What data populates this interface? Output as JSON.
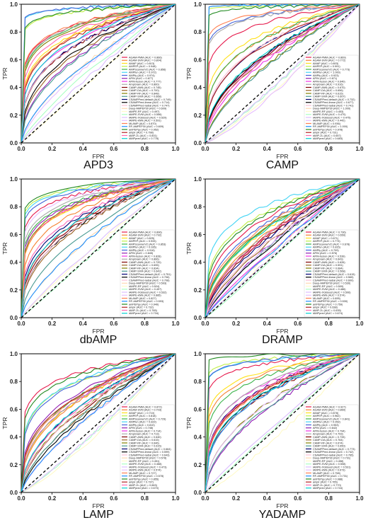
{
  "figure": {
    "colors": [
      "#e6194b",
      "#f58231",
      "#ffe119",
      "#bfef45",
      "#3cb44b",
      "#42d4f4",
      "#4363d8",
      "#911eb4",
      "#f032e6",
      "#a9a9a9",
      "#800000",
      "#9a6324",
      "#808000",
      "#469990",
      "#000075",
      "#000000",
      "#fabed4",
      "#ffd8b1",
      "#fffac8",
      "#aaffc3",
      "#dcbeff",
      "#e6beff",
      "#ff7f50",
      "#1e90ff",
      "#228b22",
      "#b22222",
      "#ff69b4",
      "#00ced1",
      "#7fff00",
      "#daa520"
    ]
  },
  "chart_data": [
    {
      "type": "line",
      "title": "APD3",
      "xlabel": "FPR",
      "ylabel": "TPR",
      "xlim": [
        0,
        1.0
      ],
      "ylim": [
        0,
        1.0
      ],
      "xticks": [
        "0.0",
        "0.2",
        "0.4",
        "0.6",
        "0.8",
        "1.0"
      ],
      "yticks": [
        "0.0",
        "0.2",
        "0.4",
        "0.6",
        "0.8",
        "1.0"
      ],
      "legend_position": "lower-right",
      "series": [
        {
          "name": "AGAM-PMM (AUC = 0.866)",
          "auc": 0.866
        },
        {
          "name": "AGAM-SVM (AUC = 0.804)",
          "auc": 0.804
        },
        {
          "name": "AMAP (AUC = 0.813)",
          "auc": 0.813
        },
        {
          "name": "AMPEP (AUC = 0.948)",
          "auc": 0.948
        },
        {
          "name": "AMPScannerV2 (AUC = 0.856)",
          "auc": 0.856
        },
        {
          "name": "AMPfun (AUC = 0.972)",
          "auc": 0.972
        },
        {
          "name": "AMPfy (AUC = 0.974)",
          "auc": 0.974
        },
        {
          "name": "APIN (AUC = 0.677)",
          "auc": 0.677
        },
        {
          "name": "APIN-fusion (AUC = 0.777)",
          "auc": 0.777
        },
        {
          "name": "AmpGram (AUC = 0.860)",
          "auc": 0.86
        },
        {
          "name": "CAMP-ANN (AUC = 0.745)",
          "auc": 0.745
        },
        {
          "name": "CAMP-DA (AUC = 0.700)",
          "auc": 0.7
        },
        {
          "name": "CAMP-RF (AUC = 0.848)",
          "auc": 0.848
        },
        {
          "name": "CAMP-SVM (AUC = 0.668)",
          "auc": 0.668
        },
        {
          "name": "CSAMPPred-default (AUC = 0.749)",
          "auc": 0.749
        },
        {
          "name": "CSAMPPred-linear (AUC = 0.714)",
          "auc": 0.714
        },
        {
          "name": "CSAMPPred-radial (AUC = 0.747)",
          "auc": 0.747
        },
        {
          "name": "Deep-AMPEP30 (AUC = 0.609)",
          "auc": 0.609
        },
        {
          "name": "iAMPE-RF (AUC = 0.497)",
          "auc": 0.497
        },
        {
          "name": "iAMPE-SVM (AUC = 0.556)",
          "auc": 0.556
        },
        {
          "name": "iAMPE-XGBoost (AUC = 0.529)",
          "auc": 0.529
        },
        {
          "name": "iAMPE-kNN (AUC = 0.591)",
          "auc": 0.591
        },
        {
          "name": "MLAMP (AUC = 0.870)",
          "auc": 0.87
        },
        {
          "name": "RF-AMPEP30 (AUC = 0.609)",
          "auc": 0.609
        },
        {
          "name": "amPEPpy (AUC = 0.952)",
          "auc": 0.952
        },
        {
          "name": "ampir (AUC = 0.798)",
          "auc": 0.798
        },
        {
          "name": "iAMP-2L (AUC = 0.831)",
          "auc": 0.831
        },
        {
          "name": "iAMPpred (AUC = 0.778)",
          "auc": 0.778
        }
      ]
    },
    {
      "type": "line",
      "title": "CAMP",
      "xlabel": "FPR",
      "ylabel": "TPR",
      "xlim": [
        0,
        1.0
      ],
      "ylim": [
        0,
        1.0
      ],
      "xticks": [
        "0.0",
        "0.2",
        "0.4",
        "0.6",
        "0.8",
        "1.0"
      ],
      "yticks": [
        "0.0",
        "0.2",
        "0.4",
        "0.6",
        "0.8",
        "1.0"
      ],
      "legend_position": "lower-right",
      "series": [
        {
          "name": "AGAM-PMM (AUC = 0.869)",
          "auc": 0.869
        },
        {
          "name": "AGAM-SVM (AUC = 0.772)",
          "auc": 0.772
        },
        {
          "name": "AMAP (AUC = 0.803)",
          "auc": 0.803
        },
        {
          "name": "AMPEP (AUC = 0.991)",
          "auc": 0.991
        },
        {
          "name": "AMPScannerV2 (AUC = 0.773)",
          "auc": 0.773
        },
        {
          "name": "AMPfun (AUC = 1.000)",
          "auc": 1.0
        },
        {
          "name": "AMPfy (AUC = 0.923)",
          "auc": 0.923
        },
        {
          "name": "APIN (AUC = 0.671)",
          "auc": 0.671
        },
        {
          "name": "APIN-fusion (AUC = 0.640)",
          "auc": 0.64
        },
        {
          "name": "AmpGram (AUC = 0.916)",
          "auc": 0.916
        },
        {
          "name": "CAMP-ANN (AUC = 0.670)",
          "auc": 0.67
        },
        {
          "name": "CAMP-DA (AUC = 0.656)",
          "auc": 0.656
        },
        {
          "name": "CAMP-RF (AUC = 0.615)",
          "auc": 0.615
        },
        {
          "name": "CAMP-SVM (AUC = 0.607)",
          "auc": 0.607
        },
        {
          "name": "CSAMPPred-default (AUC = 0.732)",
          "auc": 0.732
        },
        {
          "name": "CSAMPPred-linear (AUC = 0.677)",
          "auc": 0.677
        },
        {
          "name": "CSAMPPred-radial (AUC = 0.741)",
          "auc": 0.741
        },
        {
          "name": "Deep-AMPEP30 (AUC = 1.000)",
          "auc": 1.0
        },
        {
          "name": "iAMPE-RF (AUC = 0.453)",
          "auc": 0.453
        },
        {
          "name": "iAMPE-SVM (AUC = 0.470)",
          "auc": 0.47
        },
        {
          "name": "iAMPE-XGBoost (AUC = 0.475)",
          "auc": 0.475
        },
        {
          "name": "iAMPE-kNN (AUC = 0.442)",
          "auc": 0.442
        },
        {
          "name": "MLAMP (AUC = 0.936)",
          "auc": 0.936
        },
        {
          "name": "RF-AMPEP30 (AUC = 1.000)",
          "auc": 1.0
        },
        {
          "name": "amPEPpy (AUC = 0.978)",
          "auc": 0.978
        },
        {
          "name": "ampir (AUC = 0.731)",
          "auc": 0.731
        },
        {
          "name": "iAMP-2L (AUC = 0.657)",
          "auc": 0.657
        },
        {
          "name": "iAMPpred (AUC = 0.683)",
          "auc": 0.683
        }
      ]
    },
    {
      "type": "line",
      "title": "dbAMP",
      "xlabel": "FPR",
      "ylabel": "TPR",
      "xlim": [
        0,
        1.0
      ],
      "ylim": [
        0,
        1.0
      ],
      "xticks": [
        "0.0",
        "0.2",
        "0.4",
        "0.6",
        "0.8",
        "1.0"
      ],
      "yticks": [
        "0.0",
        "0.2",
        "0.4",
        "0.6",
        "0.8",
        "1.0"
      ],
      "legend_position": "lower-right",
      "series": [
        {
          "name": "AGAM-PMM (AUC = 0.896)",
          "auc": 0.896
        },
        {
          "name": "AGAM-SVM (AUC = 0.792)",
          "auc": 0.792
        },
        {
          "name": "AMAP (AUC = 0.825)",
          "auc": 0.825
        },
        {
          "name": "AMPEP (AUC = 0.933)",
          "auc": 0.933
        },
        {
          "name": "AMPScannerV2 (AUC = 0.853)",
          "auc": 0.853
        },
        {
          "name": "AMPfun (AUC = 0.926)",
          "auc": 0.926
        },
        {
          "name": "AMPfy (AUC = 0.916)",
          "auc": 0.916
        },
        {
          "name": "APIN (AUC = 0.845)",
          "auc": 0.845
        },
        {
          "name": "APIN-fusion (AUC = 0.828)",
          "auc": 0.828
        },
        {
          "name": "AmpGram (AUC = 0.866)",
          "auc": 0.866
        },
        {
          "name": "CAMP-ANN (AUC = 0.720)",
          "auc": 0.72
        },
        {
          "name": "CAMP-DA (AUC = 0.695)",
          "auc": 0.695
        },
        {
          "name": "CAMP-RF (AUC = 0.834)",
          "auc": 0.834
        },
        {
          "name": "CAMP-SVM (AUC = 0.642)",
          "auc": 0.642
        },
        {
          "name": "CSAMPPred-default (AUC = 0.751)",
          "auc": 0.751
        },
        {
          "name": "CSAMPPred-linear (AUC = 0.706)",
          "auc": 0.706
        },
        {
          "name": "CSAMPPred-radial (AUC = 0.708)",
          "auc": 0.708
        },
        {
          "name": "Deep-AMPEP30 (AUC = 0.593)",
          "auc": 0.593
        },
        {
          "name": "iAMPE-RF (AUC = 0.524)",
          "auc": 0.524
        },
        {
          "name": "iAMPE-SVM (AUC = 0.497)",
          "auc": 0.497
        },
        {
          "name": "iAMPE-XGBoost (AUC = 0.532)",
          "auc": 0.532
        },
        {
          "name": "iAMPE-kNN (AUC = 0.885)",
          "auc": 0.885
        },
        {
          "name": "MLAMP (AUC = 0.827)",
          "auc": 0.827
        },
        {
          "name": "RF-AMPEP30 (AUC = 0.593)",
          "auc": 0.593
        },
        {
          "name": "amPEPpy (AUC = 0.940)",
          "auc": 0.94
        },
        {
          "name": "ampir (AUC = 0.732)",
          "auc": 0.732
        },
        {
          "name": "iAMP-2L (AUC = 0.765)",
          "auc": 0.765
        },
        {
          "name": "iAMPpred (AUC = 0.734)",
          "auc": 0.734
        }
      ]
    },
    {
      "type": "line",
      "title": "DRAMP",
      "xlabel": "FPR",
      "ylabel": "TPR",
      "xlim": [
        0,
        1.0
      ],
      "ylim": [
        0,
        1.0
      ],
      "xticks": [
        "0.0",
        "0.2",
        "0.4",
        "0.6",
        "0.8",
        "1.0"
      ],
      "yticks": [
        "0.0",
        "0.2",
        "0.4",
        "0.6",
        "0.8",
        "1.0"
      ],
      "legend_position": "lower-right",
      "series": [
        {
          "name": "AGAM-PMM (AUC = 0.736)",
          "auc": 0.736
        },
        {
          "name": "AGAM-SVM (AUC = 0.650)",
          "auc": 0.65
        },
        {
          "name": "AMAP (AUC = 0.671)",
          "auc": 0.671
        },
        {
          "name": "AMPEP (AUC = 0.773)",
          "auc": 0.773
        },
        {
          "name": "AMPScannerV2 (AUC = 0.678)",
          "auc": 0.678
        },
        {
          "name": "AMPfun (AUC = 0.815)",
          "auc": 0.815
        },
        {
          "name": "AMPfy (AUC = 0.709)",
          "auc": 0.709
        },
        {
          "name": "APIN (AUC = 0.576)",
          "auc": 0.576
        },
        {
          "name": "APIN-fusion (AUC = 0.539)",
          "auc": 0.539
        },
        {
          "name": "AmpGram (AUC = 0.643)",
          "auc": 0.643
        },
        {
          "name": "CAMP-ANN (AUC = 0.626)",
          "auc": 0.626
        },
        {
          "name": "CAMP-DA (AUC = 0.591)",
          "auc": 0.591
        },
        {
          "name": "CAMP-RF (AUC = 0.684)",
          "auc": 0.684
        },
        {
          "name": "CAMP-SVM (AUC = 0.568)",
          "auc": 0.568
        },
        {
          "name": "CSAMPPred-default (AUC = 0.615)",
          "auc": 0.615
        },
        {
          "name": "CSAMPPred-linear (AUC = 0.565)",
          "auc": 0.565
        },
        {
          "name": "CSAMPPred-radial (AUC = 0.600)",
          "auc": 0.6
        },
        {
          "name": "Deep-AMPEP30 (AUC = 0.530)",
          "auc": 0.53
        },
        {
          "name": "iAMPE-RF (AUC = 0.509)",
          "auc": 0.509
        },
        {
          "name": "iAMPE-SVM (AUC = 0.486)",
          "auc": 0.486
        },
        {
          "name": "iAMPE-XGBoost (AUC = 0.506)",
          "auc": 0.506
        },
        {
          "name": "iAMPE-kNN (AUC = 0.574)",
          "auc": 0.574
        },
        {
          "name": "MLAMP (AUC = 0.695)",
          "auc": 0.695
        },
        {
          "name": "RF-AMPEP30 (AUC = 0.530)",
          "auc": 0.53
        },
        {
          "name": "amPEPpy (AUC = 0.759)",
          "auc": 0.759
        },
        {
          "name": "ampir (AUC = 0.638)",
          "auc": 0.638
        },
        {
          "name": "iAMP-2L (AUC = 0.635)",
          "auc": 0.635
        },
        {
          "name": "iAMPpred (AUC = 0.674)",
          "auc": 0.674
        }
      ]
    },
    {
      "type": "line",
      "title": "LAMP",
      "xlabel": "FPR",
      "ylabel": "TPR",
      "xlim": [
        0,
        1.0
      ],
      "ylim": [
        0,
        1.0
      ],
      "xticks": [
        "0.0",
        "0.2",
        "0.4",
        "0.6",
        "0.8",
        "1.0"
      ],
      "yticks": [
        "0.0",
        "0.2",
        "0.4",
        "0.6",
        "0.8",
        "1.0"
      ],
      "legend_position": "lower-right",
      "series": [
        {
          "name": "AGAM-PMM (AUC = 0.872)",
          "auc": 0.872
        },
        {
          "name": "AGAM-SVM (AUC = 0.703)",
          "auc": 0.703
        },
        {
          "name": "AMAP (AUC = 0.710)",
          "auc": 0.71
        },
        {
          "name": "AMPEP (AUC = 0.818)",
          "auc": 0.818
        },
        {
          "name": "AMPScannerV2 (AUC = 0.729)",
          "auc": 0.729
        },
        {
          "name": "AMPfun (AUC = 0.822)",
          "auc": 0.822
        },
        {
          "name": "AMPfy (AUC = 0.810)",
          "auc": 0.81
        },
        {
          "name": "APIN (AUC = 0.748)",
          "auc": 0.748
        },
        {
          "name": "APIN-fusion (AUC = 0.714)",
          "auc": 0.714
        },
        {
          "name": "AmpGram (AUC = 0.713)",
          "auc": 0.713
        },
        {
          "name": "CAMP-ANN (AUC = 0.640)",
          "auc": 0.64
        },
        {
          "name": "CAMP-DA (AUC = 0.615)",
          "auc": 0.615
        },
        {
          "name": "CAMP-RF (AUC = 0.646)",
          "auc": 0.646
        },
        {
          "name": "CAMP-SVM (AUC = 0.615)",
          "auc": 0.615
        },
        {
          "name": "CSAMPPred-default (AUC = 0.664)",
          "auc": 0.664
        },
        {
          "name": "CSAMPPred-linear (AUC = 0.599)",
          "auc": 0.599
        },
        {
          "name": "CSAMPPred-radial (AUC = 0.643)",
          "auc": 0.643
        },
        {
          "name": "Deep-AMPEP30 (AUC = 0.578)",
          "auc": 0.578
        },
        {
          "name": "iAMPE-RF (AUC = 0.451)",
          "auc": 0.451
        },
        {
          "name": "iAMPE-SVM (AUC = 0.468)",
          "auc": 0.468
        },
        {
          "name": "iAMPE-XGBoost (AUC = 0.473)",
          "auc": 0.473
        },
        {
          "name": "iAMPE-kNN (AUC = 0.574)",
          "auc": 0.574
        },
        {
          "name": "MLAMP (AUC = 0.727)",
          "auc": 0.727
        },
        {
          "name": "RF-AMPEP30 (AUC = 0.578)",
          "auc": 0.578
        },
        {
          "name": "amPEPpy (AUC = 0.855)",
          "auc": 0.855
        },
        {
          "name": "ampir (AUC = 0.737)",
          "auc": 0.737
        },
        {
          "name": "iAMP-2L (AUC = 0.663)",
          "auc": 0.663
        },
        {
          "name": "iAMPpred (AUC = 0.670)",
          "auc": 0.67
        }
      ]
    },
    {
      "type": "line",
      "title": "YADAMP",
      "xlabel": "FPR",
      "ylabel": "TPR",
      "xlim": [
        0,
        1.0
      ],
      "ylim": [
        0,
        1.0
      ],
      "xticks": [
        "0.0",
        "0.2",
        "0.4",
        "0.6",
        "0.8",
        "1.0"
      ],
      "yticks": [
        "0.0",
        "0.2",
        "0.4",
        "0.6",
        "0.8",
        "1.0"
      ],
      "legend_position": "lower-right",
      "series": [
        {
          "name": "AGAM-PMM (AUC = 0.927)",
          "auc": 0.927
        },
        {
          "name": "AGAM-SVM (AUC = 0.860)",
          "auc": 0.86
        },
        {
          "name": "AMAP (AUC = 0.878)",
          "auc": 0.878
        },
        {
          "name": "AMPEP (AUC = 0.962)",
          "auc": 0.962
        },
        {
          "name": "AMPScannerV2 (AUC = 0.841)",
          "auc": 0.841
        },
        {
          "name": "AMPfun (AUC = 0.952)",
          "auc": 0.952
        },
        {
          "name": "AMPfy (AUC = 0.953)",
          "auc": 0.953
        },
        {
          "name": "APIN (AUC = 0.642)",
          "auc": 0.642
        },
        {
          "name": "APIN-fusion (AUC = 0.794)",
          "auc": 0.794
        },
        {
          "name": "AmpGram (AUC = 0.793)",
          "auc": 0.793
        },
        {
          "name": "CAMP-ANN (AUC = 0.733)",
          "auc": 0.733
        },
        {
          "name": "CAMP-DA (AUC = 0.764)",
          "auc": 0.764
        },
        {
          "name": "CAMP-RF (AUC = 0.674)",
          "auc": 0.674
        },
        {
          "name": "CAMP-SVM (AUC = 0.650)",
          "auc": 0.65
        },
        {
          "name": "CSAMPPred-default (AUC = 0.773)",
          "auc": 0.773
        },
        {
          "name": "CSAMPPred-linear (AUC = 0.742)",
          "auc": 0.742
        },
        {
          "name": "CSAMPPred-radial (AUC = 0.765)",
          "auc": 0.765
        },
        {
          "name": "Deep-AMPEP30 (AUC = 0.731)",
          "auc": 0.731
        },
        {
          "name": "iAMPE-RF (AUC = 0.458)",
          "auc": 0.458
        },
        {
          "name": "iAMPE-SVM (AUC = 0.508)",
          "auc": 0.508
        },
        {
          "name": "iAMPE-XGBoost (AUC = 0.531)",
          "auc": 0.531
        },
        {
          "name": "iAMPE-kNN (AUC = 0.673)",
          "auc": 0.673
        },
        {
          "name": "MLAMP (AUC = 0.758)",
          "auc": 0.758
        },
        {
          "name": "RF-AMPEP30 (AUC = 0.731)",
          "auc": 0.731
        },
        {
          "name": "amPEPpy (AUC = 0.988)",
          "auc": 0.988
        },
        {
          "name": "ampir (AUC = 0.765)",
          "auc": 0.765
        },
        {
          "name": "iAMP-2L (AUC = 0.770)",
          "auc": 0.77
        },
        {
          "name": "iAMPpred (AUC = 0.744)",
          "auc": 0.744
        }
      ]
    }
  ]
}
